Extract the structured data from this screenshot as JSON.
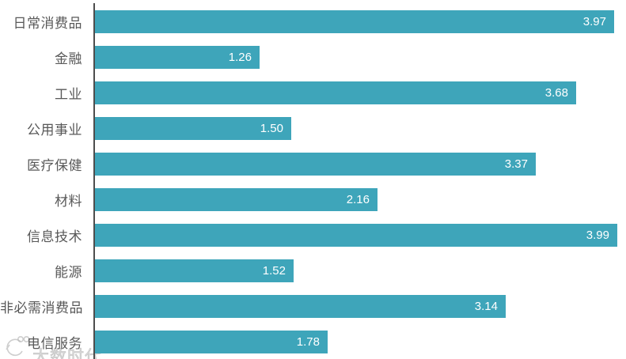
{
  "chart_data": {
    "type": "bar",
    "orientation": "horizontal",
    "title": "",
    "xlabel": "",
    "ylabel": "",
    "grid": false,
    "legend": false,
    "xlim": [
      0,
      4.07
    ],
    "categories": [
      "日常消费品",
      "金融",
      "工业",
      "公用事业",
      "医疗保健",
      "材料",
      "信息技术",
      "能源",
      "非必需消费品",
      "电信服务"
    ],
    "values": [
      3.97,
      1.26,
      3.68,
      1.5,
      3.37,
      2.16,
      3.99,
      1.52,
      3.14,
      1.78
    ],
    "value_labels": [
      "3.97",
      "1.26",
      "3.68",
      "1.50",
      "3.37",
      "2.16",
      "3.99",
      "1.52",
      "3.14",
      "1.78"
    ],
    "colors": {
      "bar": "#3EA5BA",
      "value_label": "#FFFFFF",
      "category_label": "#595959",
      "axis_line": "#4D4D4D",
      "background": "#FFFFFF"
    }
  },
  "watermark": {
    "text": "大数时代",
    "color": "#BEBEBE"
  }
}
